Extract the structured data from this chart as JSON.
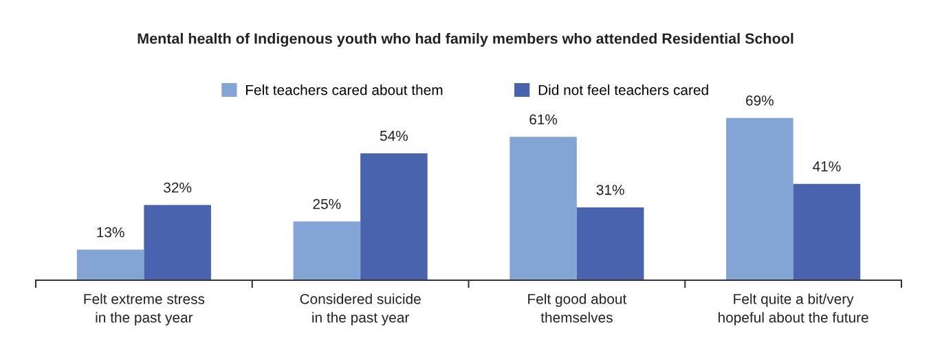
{
  "chart_data": {
    "type": "bar",
    "title": "Mental health of Indigenous youth who had family members who attended Residential School",
    "categories": [
      "Felt extreme stress\nin the past year",
      "Considered suicide\nin the past year",
      "Felt good about\nthemselves",
      "Felt quite a bit/very\nhopeful about the future"
    ],
    "series": [
      {
        "name": "Felt teachers cared about them",
        "color": "#82a5d6",
        "values": [
          13,
          25,
          61,
          69
        ],
        "value_labels": [
          "13%",
          "25%",
          "61%",
          "69%"
        ]
      },
      {
        "name": "Did not feel teachers cared",
        "color": "#4a63ae",
        "values": [
          32,
          54,
          31,
          41
        ],
        "value_labels": [
          "32%",
          "54%",
          "31%",
          "41%"
        ]
      }
    ],
    "legend": "top",
    "grid": false
  }
}
